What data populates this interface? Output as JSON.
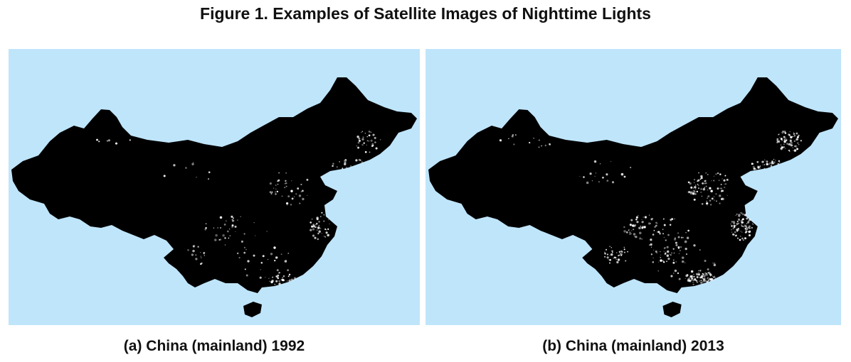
{
  "figure": {
    "title": "Figure 1. Examples of Satellite Images of Nighttime Lights"
  },
  "colors": {
    "ocean": "#bfe5fb",
    "land": "#000000",
    "lights": "#ffffff"
  },
  "panels": [
    {
      "caption": "(a) China (mainland) 1992",
      "year": 1992,
      "light_intensity": 0.45
    },
    {
      "caption": "(b) China (mainland) 2013",
      "year": 2013,
      "light_intensity": 1.0
    }
  ]
}
